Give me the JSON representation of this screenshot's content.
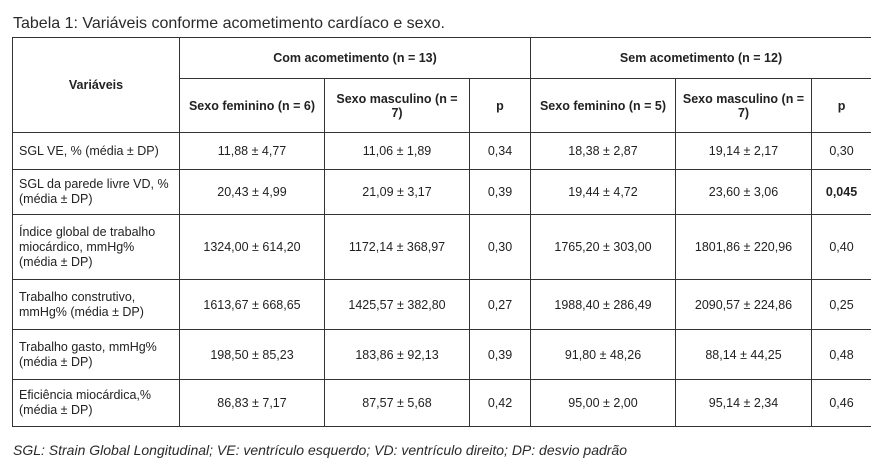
{
  "title": "Tabela 1: Variáveis conforme acometimento cardíaco e sexo.",
  "header": {
    "variables": "Variáveis",
    "group_with": "Com acometimento (n = 13)",
    "group_without": "Sem acometimento (n = 12)",
    "with_female": "Sexo feminino (n = 6)",
    "with_male": "Sexo masculino (n = 7)",
    "with_p": "p",
    "without_female": "Sexo feminino (n = 5)",
    "without_male": "Sexo masculino (n = 7)",
    "without_p": "p"
  },
  "rows": [
    {
      "label": "SGL VE, % (média ± DP)",
      "with_female": "11,88 ± 4,77",
      "with_male": "11,06 ± 1,89",
      "with_p": "0,34",
      "without_female": "18,38 ± 2,87",
      "without_male": "19,14 ± 2,17",
      "without_p": "0,30"
    },
    {
      "label": "SGL da parede livre VD, % (média ± DP)",
      "with_female": "20,43 ± 4,99",
      "with_male": "21,09 ± 3,17",
      "with_p": "0,39",
      "without_female": "19,44 ± 4,72",
      "without_male": "23,60 ± 3,06",
      "without_p": "0,045"
    },
    {
      "label": "Índice global de trabalho miocárdico, mmHg% (média ± DP)",
      "with_female": "1324,00 ± 614,20",
      "with_male": "1172,14 ± 368,97",
      "with_p": "0,30",
      "without_female": "1765,20 ± 303,00",
      "without_male": "1801,86  ± 220,96",
      "without_p": "0,40"
    },
    {
      "label": "Trabalho construtivo, mmHg% (média ± DP)",
      "with_female": "1613,67 ± 668,65",
      "with_male": "1425,57 ± 382,80",
      "with_p": "0,27",
      "without_female": "1988,40 ± 286,49",
      "without_male": "2090,57 ± 224,86",
      "without_p": "0,25"
    },
    {
      "label": "Trabalho gasto, mmHg% (média ± DP)",
      "with_female": "198,50 ± 85,23",
      "with_male": "183,86 ± 92,13",
      "with_p": "0,39",
      "without_female": "91,80 ± 48,26",
      "without_male": "88,14 ± 44,25",
      "without_p": "0,48"
    },
    {
      "label": "Eficiência miocárdica,% (média ± DP)",
      "with_female": "86,83 ± 7,17",
      "with_male": "87,57 ± 5,68",
      "with_p": "0,42",
      "without_female": "95,00 ± 2,00",
      "without_male": "95,14 ± 2,34",
      "without_p": "0,46"
    }
  ],
  "footnote": "SGL: Strain Global Longitudinal; VE: ventrículo esquerdo; VD: ventrículo direito; DP: desvio padrão"
}
